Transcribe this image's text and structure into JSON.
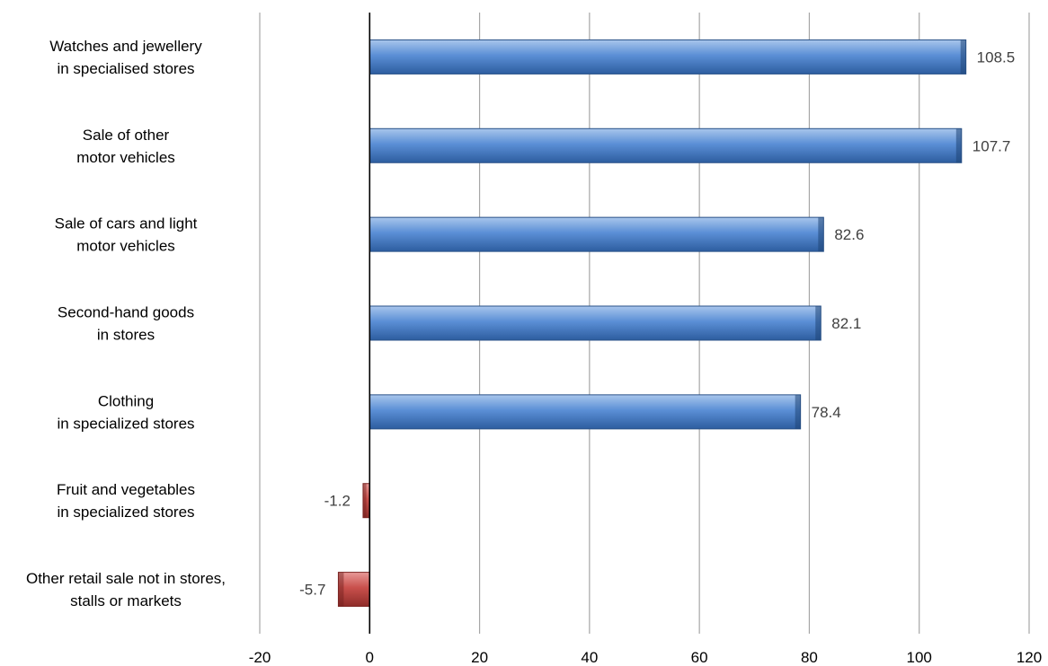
{
  "chart_data": {
    "type": "bar",
    "orientation": "horizontal",
    "categories": [
      "Watches and jewellery\nin specialised stores",
      "Sale of other\nmotor vehicles",
      "Sale of cars and light\nmotor vehicles",
      "Second-hand goods\nin stores",
      "Clothing\nin specialized stores",
      "Fruit and vegetables\nin specialized stores",
      "Other retail sale not in stores,\nstalls or markets"
    ],
    "values": [
      108.5,
      107.7,
      82.6,
      82.1,
      78.4,
      -1.2,
      -5.7
    ],
    "value_labels": [
      "108.5",
      "107.7",
      "82.6",
      "82.1",
      "78.4",
      "-1.2",
      "-5.7"
    ],
    "xlim": [
      -20,
      120
    ],
    "xticks": [
      -20,
      0,
      20,
      40,
      60,
      80,
      100,
      120
    ],
    "xtick_labels": [
      "-20",
      "0",
      "20",
      "40",
      "60",
      "80",
      "100",
      "120"
    ],
    "grid": "vertical",
    "legend": "none",
    "colors": {
      "positive": "#4F81BD",
      "negative": "#C0504D",
      "grid": "#A6A6A6",
      "zero_line": "#000000"
    },
    "title": "",
    "xlabel": "",
    "ylabel": ""
  }
}
